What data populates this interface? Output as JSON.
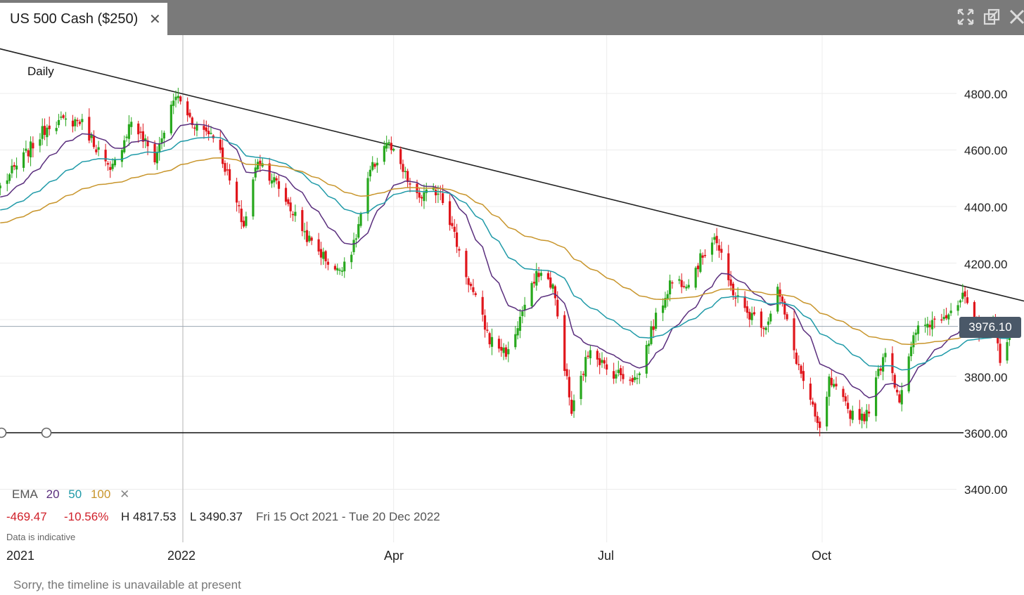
{
  "window": {
    "tab_title": "US 500 Cash ($250)",
    "close_glyph": "✕"
  },
  "controls": {
    "icons": [
      "expand-icon",
      "popout-icon",
      "close-window-icon"
    ]
  },
  "chart_data": {
    "type": "candlestick",
    "instrument": "US 500 Cash ($250)",
    "timeframe": "Daily",
    "x_range": [
      "2021-10-15",
      "2022-12-20"
    ],
    "x_ticks": [
      {
        "date": "2021-10-01",
        "label": "2021"
      },
      {
        "date": "2022-01-01",
        "label": "2022"
      },
      {
        "date": "2022-04-01",
        "label": "Apr"
      },
      {
        "date": "2022-07-01",
        "label": "Jul"
      },
      {
        "date": "2022-10-01",
        "label": "Oct"
      }
    ],
    "y_ticks": [
      3400,
      3600,
      3800,
      4000,
      4200,
      4400,
      4600,
      4800
    ],
    "y_tick_labels": [
      "3400.00",
      "3600.00",
      "3800.00",
      "4200.00",
      "4400.00",
      "4600.00",
      "4800.00"
    ],
    "ylim": [
      3270,
      4980
    ],
    "current_price": 3976.1,
    "current_price_label": "3976.10",
    "support_line": {
      "price": 3600,
      "label": "3600.00"
    },
    "trendline": [
      {
        "date": "2021-10-04",
        "price": 4980
      },
      {
        "date": "2022-12-29",
        "price": 4060
      }
    ],
    "close_anchors": [
      [
        "2021-10-15",
        4470
      ],
      [
        "2021-10-25",
        4575
      ],
      [
        "2021-11-05",
        4695
      ],
      [
        "2021-11-18",
        4705
      ],
      [
        "2021-11-26",
        4600
      ],
      [
        "2021-12-01",
        4515
      ],
      [
        "2021-12-10",
        4705
      ],
      [
        "2021-12-20",
        4570
      ],
      [
        "2021-12-29",
        4795
      ],
      [
        "2022-01-05",
        4700
      ],
      [
        "2022-01-10",
        4670
      ],
      [
        "2022-01-14",
        4660
      ],
      [
        "2022-01-19",
        4540
      ],
      [
        "2022-01-27",
        4330
      ],
      [
        "2022-02-02",
        4570
      ],
      [
        "2022-02-10",
        4480
      ],
      [
        "2022-02-24",
        4280
      ],
      [
        "2022-03-08",
        4170
      ],
      [
        "2022-03-15",
        4260
      ],
      [
        "2022-03-22",
        4520
      ],
      [
        "2022-03-29",
        4630
      ],
      [
        "2022-04-11",
        4430
      ],
      [
        "2022-04-21",
        4460
      ],
      [
        "2022-05-02",
        4160
      ],
      [
        "2022-05-12",
        3930
      ],
      [
        "2022-05-20",
        3880
      ],
      [
        "2022-05-26",
        4030
      ],
      [
        "2022-06-02",
        4170
      ],
      [
        "2022-06-08",
        4120
      ],
      [
        "2022-06-16",
        3670
      ],
      [
        "2022-06-24",
        3910
      ],
      [
        "2022-07-01",
        3820
      ],
      [
        "2022-07-14",
        3790
      ],
      [
        "2022-07-20",
        3960
      ],
      [
        "2022-07-28",
        4130
      ],
      [
        "2022-08-05",
        4140
      ],
      [
        "2022-08-16",
        4300
      ],
      [
        "2022-08-22",
        4130
      ],
      [
        "2022-08-29",
        4030
      ],
      [
        "2022-09-07",
        3980
      ],
      [
        "2022-09-12",
        4110
      ],
      [
        "2022-09-20",
        3860
      ],
      [
        "2022-09-30",
        3600
      ],
      [
        "2022-10-04",
        3780
      ],
      [
        "2022-10-13",
        3670
      ],
      [
        "2022-10-20",
        3660
      ],
      [
        "2022-10-28",
        3900
      ],
      [
        "2022-11-03",
        3720
      ],
      [
        "2022-11-10",
        3960
      ],
      [
        "2022-11-22",
        4020
      ],
      [
        "2022-12-01",
        4080
      ],
      [
        "2022-12-07",
        3930
      ],
      [
        "2022-12-13",
        4010
      ],
      [
        "2022-12-16",
        3840
      ],
      [
        "2022-12-20",
        3976
      ]
    ],
    "indicators": [
      {
        "name": "EMA",
        "periods": [
          20,
          50,
          100
        ],
        "colors": [
          "#5a2e7d",
          "#1f9aa8",
          "#c8952b"
        ]
      }
    ],
    "candle_colors": {
      "up": "#28a81e",
      "down": "#e0161c"
    },
    "stats": {
      "change": "-469.47",
      "change_pct": "-10.56%",
      "high": "H 4817.53",
      "low": "L 3490.37",
      "range": "Fri 15 Oct 2021 - Tue 20 Dec 2022"
    },
    "legend": {
      "label": "EMA",
      "p1": "20",
      "p2": "50",
      "p3": "100",
      "remove_glyph": "✕"
    },
    "disclaimer": "Data is indicative",
    "grid": true
  },
  "footer": {
    "text": "Sorry, the timeline is unavailable at present"
  }
}
